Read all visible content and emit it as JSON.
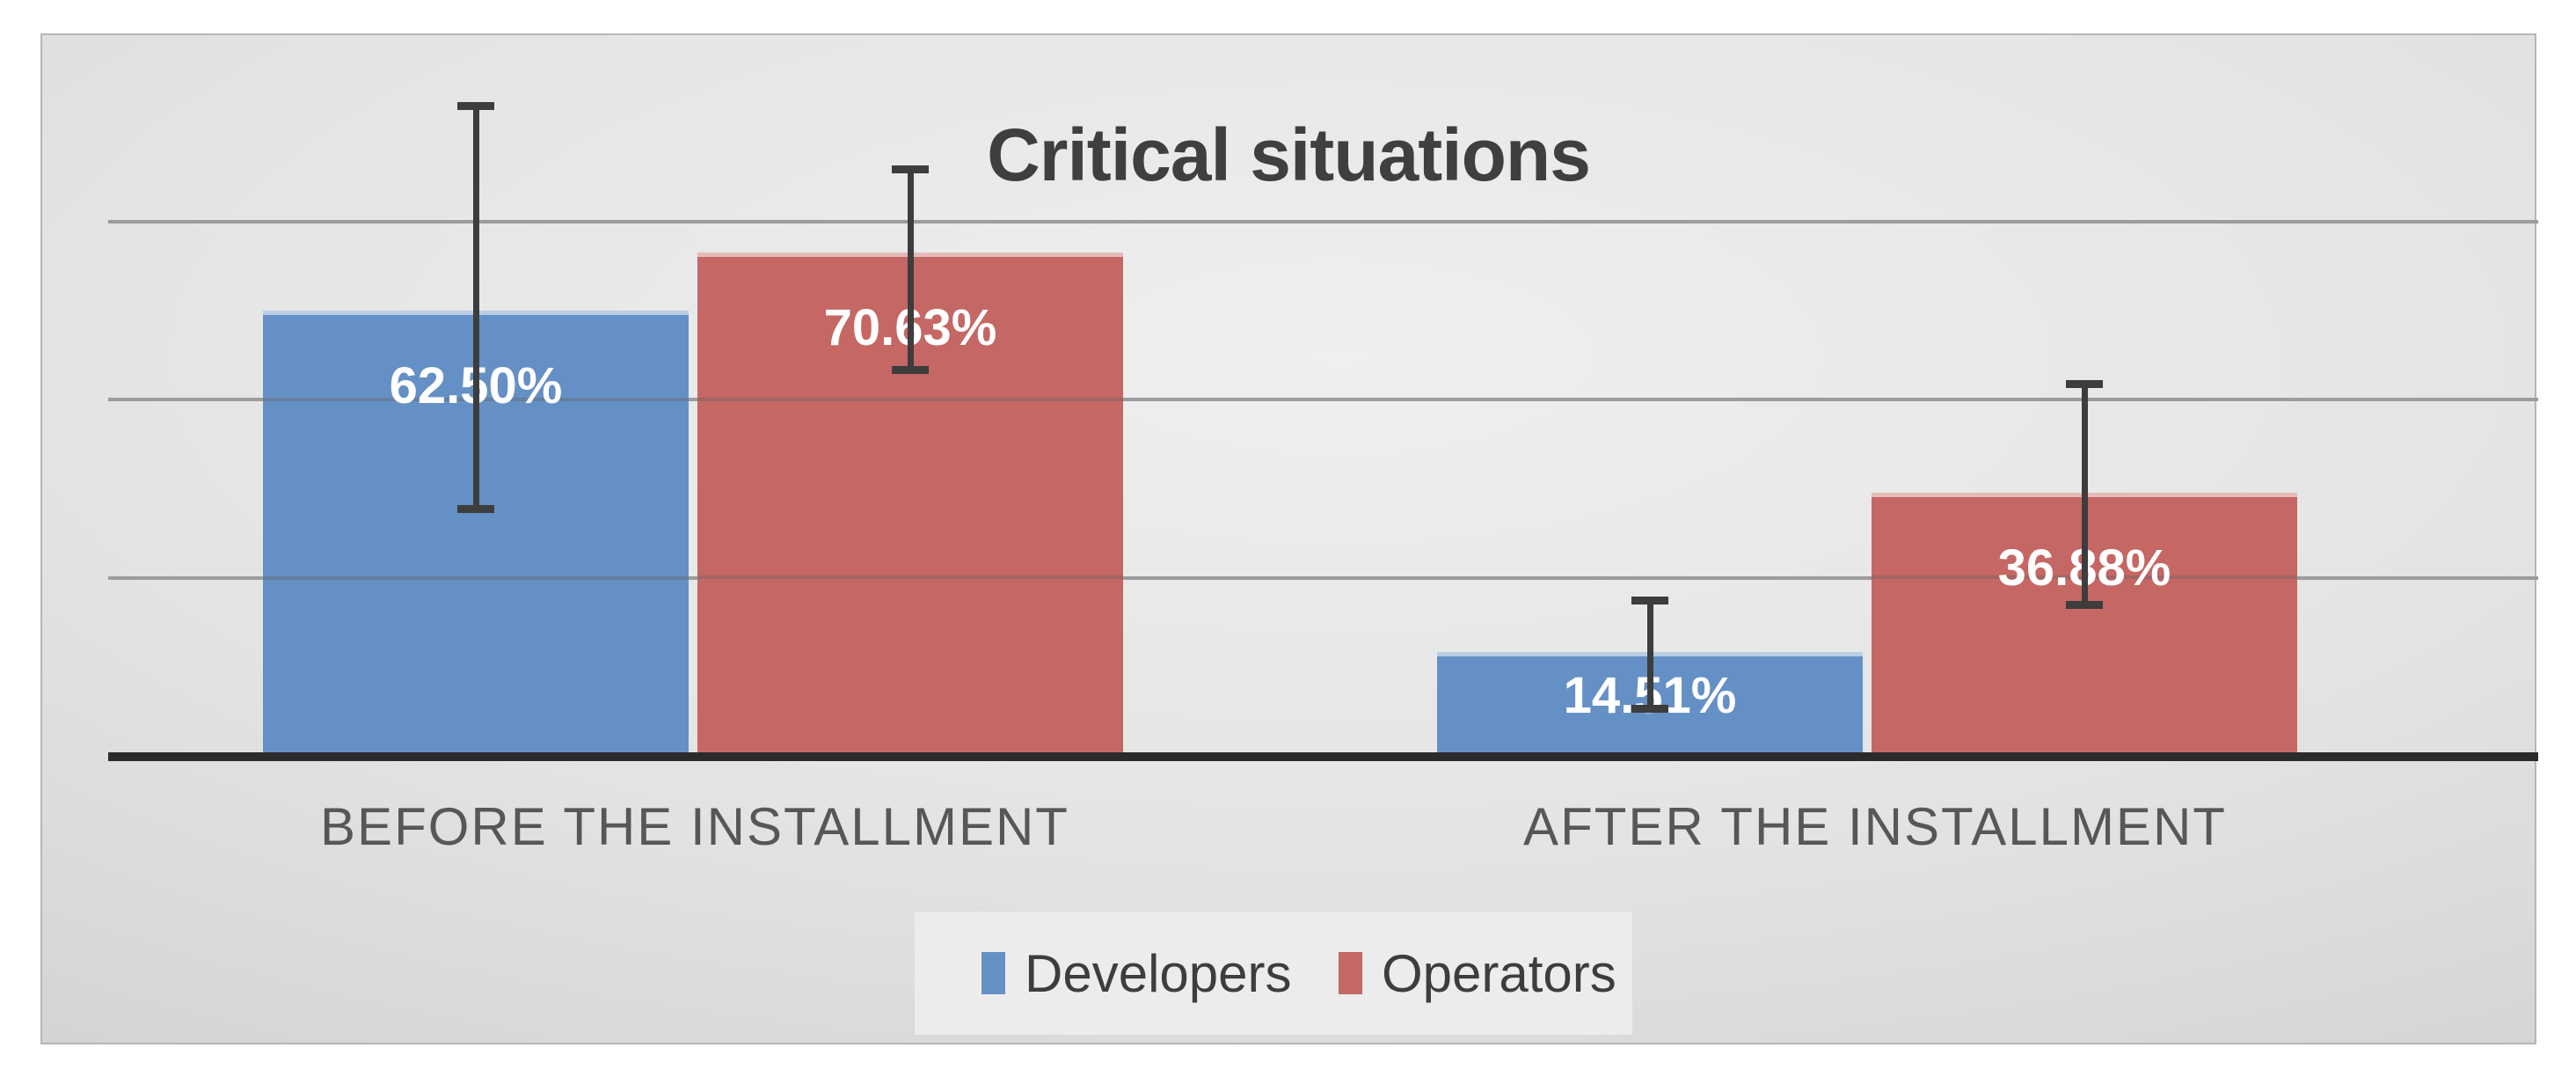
{
  "chart_data": {
    "type": "bar",
    "title": "Critical situations",
    "categories": [
      "BEFORE THE INSTALLMENT",
      "AFTER THE INSTALLMENT"
    ],
    "series": [
      {
        "name": "Developers",
        "color": "#6590c5",
        "values": [
          62.5,
          14.51
        ],
        "labels": [
          "62.50%",
          "14.51%"
        ],
        "error_bars": [
          {
            "lo": 34.6,
            "hi": 91.2
          },
          {
            "lo": 6.6,
            "hi": 21.8
          }
        ]
      },
      {
        "name": "Operators",
        "color": "#c56764",
        "values": [
          70.63,
          36.88
        ],
        "labels": [
          "70.63%",
          "36.88%"
        ],
        "error_bars": [
          {
            "lo": 54.1,
            "hi": 82.3
          },
          {
            "lo": 21.2,
            "hi": 52.2
          }
        ]
      }
    ],
    "ylim": [
      0,
      87.5
    ],
    "gridlines_pct": [
      25,
      50,
      75
    ],
    "grid": true,
    "legend_position": "bottom",
    "value_label_format": "percent",
    "axis_color": "#2b2b2b",
    "gridline_color": "#9c9c9c",
    "errorbar_color": "#3d3d3d"
  }
}
